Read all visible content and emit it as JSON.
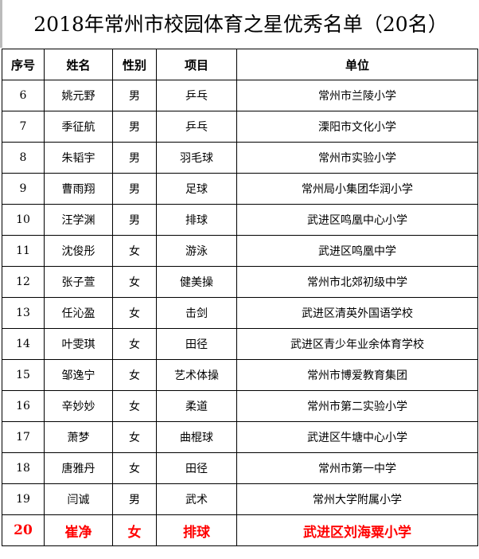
{
  "title": "2018年常州市校园体育之星优秀名单（20名）",
  "headers": [
    "序号",
    "姓名",
    "性别",
    "项目",
    "单位"
  ],
  "rows": [
    [
      "6",
      "姚元野",
      "男",
      "乒乓",
      "常州市兰陵小学"
    ],
    [
      "7",
      "季征航",
      "男",
      "乒乓",
      "溧阳市文化小学"
    ],
    [
      "8",
      "朱韬宇",
      "男",
      "羽毛球",
      "常州市实验小学"
    ],
    [
      "9",
      "曹雨翔",
      "男",
      "足球",
      "常州局小集团华润小学"
    ],
    [
      "10",
      "汪学渊",
      "男",
      "排球",
      "武进区鸣凰中心小学"
    ],
    [
      "11",
      "沈俊彤",
      "女",
      "游泳",
      "武进区鸣凰中学"
    ],
    [
      "12",
      "张子萱",
      "女",
      "健美操",
      "常州市北郊初级中学"
    ],
    [
      "13",
      "任沁盈",
      "女",
      "击剑",
      "武进区清英外国语学校"
    ],
    [
      "14",
      "叶雯琪",
      "女",
      "田径",
      "武进区青少年业余体育学校"
    ],
    [
      "15",
      "邹逸宁",
      "女",
      "艺术体操",
      "常州市博爱教育集团"
    ],
    [
      "16",
      "辛妙妙",
      "女",
      "柔道",
      "常州市第二实验小学"
    ],
    [
      "17",
      "萧梦",
      "女",
      "曲棍球",
      "武进区牛塘中心小学"
    ],
    [
      "18",
      "唐雅丹",
      "女",
      "田径",
      "常州市第一中学"
    ],
    [
      "19",
      "闫诚",
      "男",
      "武术",
      "常州大学附属小学"
    ],
    [
      "20",
      "崔净",
      "女",
      "排球",
      "武进区刘海粟小学"
    ]
  ],
  "highlight_color": "#ff0000"
}
